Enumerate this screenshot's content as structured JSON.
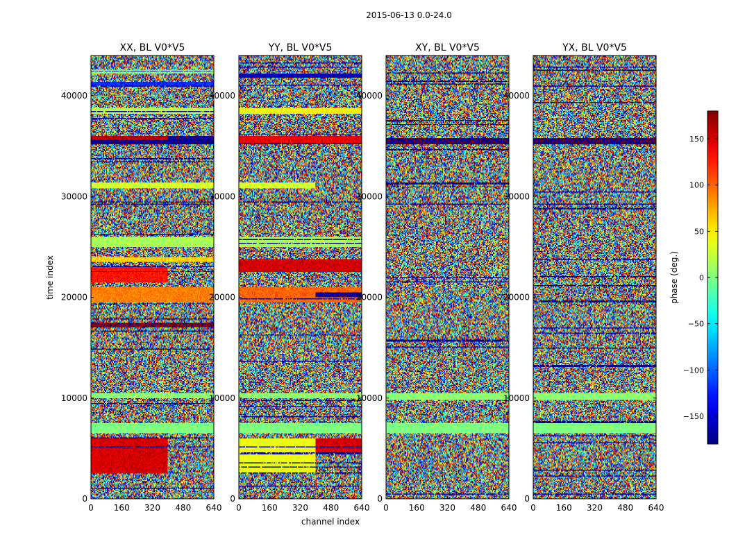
{
  "chart_data": {
    "type": "heatmap",
    "suptitle": "2015-06-13 0.0-24.0",
    "xlabel": "channel index",
    "ylabel": "time index",
    "xlim": [
      0,
      640
    ],
    "ylim": [
      0,
      44000
    ],
    "xticks": [
      0,
      160,
      320,
      480,
      640
    ],
    "yticks": [
      0,
      10000,
      20000,
      30000,
      40000
    ],
    "colormap": "jet",
    "colorbar": {
      "label": "phase (deg.)",
      "range": [
        -180,
        180
      ],
      "ticks": [
        -150,
        -100,
        -50,
        0,
        50,
        100,
        150
      ],
      "tick_labels": [
        "−150",
        "−100",
        "−50",
        "0",
        "50",
        "100",
        "150"
      ]
    },
    "panels": [
      {
        "title": "XX, BL V0*V5",
        "seed": 11,
        "bands": [
          {
            "t0": 2500,
            "t1": 6000,
            "phase": 150,
            "ch0": 0,
            "ch1": 400
          },
          {
            "t0": 6500,
            "t1": 7500,
            "phase": 0,
            "ch0": 0,
            "ch1": 640
          },
          {
            "t0": 10000,
            "t1": 10500,
            "phase": 5,
            "ch0": 0,
            "ch1": 640
          },
          {
            "t0": 17000,
            "t1": 17500,
            "phase": 175,
            "ch0": 0,
            "ch1": 640
          },
          {
            "t0": 19500,
            "t1": 21000,
            "phase": 90,
            "ch0": 0,
            "ch1": 640
          },
          {
            "t0": 21500,
            "t1": 23000,
            "phase": 130,
            "ch0": 0,
            "ch1": 400
          },
          {
            "t0": 23500,
            "t1": 24000,
            "phase": 60,
            "ch0": 0,
            "ch1": 640
          },
          {
            "t0": 25000,
            "t1": 26000,
            "phase": 15,
            "ch0": 0,
            "ch1": 640
          },
          {
            "t0": 30800,
            "t1": 31400,
            "phase": 30,
            "ch0": 0,
            "ch1": 640
          },
          {
            "t0": 35200,
            "t1": 36000,
            "phase": -170,
            "ch0": 0,
            "ch1": 640
          },
          {
            "t0": 35600,
            "t1": 36000,
            "phase": 160,
            "ch0": 0,
            "ch1": 400
          },
          {
            "t0": 38200,
            "t1": 38800,
            "phase": 20,
            "ch0": 0,
            "ch1": 640
          },
          {
            "t0": 41000,
            "t1": 41400,
            "phase": -120,
            "ch0": 0,
            "ch1": 640
          },
          {
            "t0": 42200,
            "t1": 42600,
            "phase": 0,
            "ch0": 0,
            "ch1": 640
          }
        ]
      },
      {
        "title": "YY, BL V0*V5",
        "seed": 23,
        "bands": [
          {
            "t0": 2500,
            "t1": 6000,
            "phase": 40,
            "ch0": 0,
            "ch1": 400
          },
          {
            "t0": 4500,
            "t1": 6000,
            "phase": 150,
            "ch0": 400,
            "ch1": 640
          },
          {
            "t0": 6500,
            "t1": 7500,
            "phase": 0,
            "ch0": 0,
            "ch1": 640
          },
          {
            "t0": 10000,
            "t1": 10500,
            "phase": 5,
            "ch0": 0,
            "ch1": 640
          },
          {
            "t0": 19500,
            "t1": 21000,
            "phase": 100,
            "ch0": 0,
            "ch1": 640
          },
          {
            "t0": 20000,
            "t1": 20500,
            "phase": -170,
            "ch0": 400,
            "ch1": 640
          },
          {
            "t0": 22500,
            "t1": 23800,
            "phase": 150,
            "ch0": 0,
            "ch1": 640
          },
          {
            "t0": 25000,
            "t1": 26000,
            "phase": 15,
            "ch0": 0,
            "ch1": 640
          },
          {
            "t0": 30800,
            "t1": 31400,
            "phase": 30,
            "ch0": 0,
            "ch1": 400
          },
          {
            "t0": 35200,
            "t1": 36000,
            "phase": 140,
            "ch0": 0,
            "ch1": 640
          },
          {
            "t0": 38200,
            "t1": 38800,
            "phase": 45,
            "ch0": 0,
            "ch1": 640
          },
          {
            "t0": 41800,
            "t1": 42200,
            "phase": -160,
            "ch0": 0,
            "ch1": 640
          }
        ]
      },
      {
        "title": "XY, BL V0*V5",
        "seed": 37,
        "bands": [
          {
            "t0": 6500,
            "t1": 7500,
            "phase": 0,
            "ch0": 0,
            "ch1": 640
          },
          {
            "t0": 9800,
            "t1": 10500,
            "phase": 5,
            "ch0": 0,
            "ch1": 640
          },
          {
            "t0": 35200,
            "t1": 35800,
            "phase": -175,
            "ch0": 0,
            "ch1": 640
          }
        ]
      },
      {
        "title": "YX, BL V0*V5",
        "seed": 53,
        "bands": [
          {
            "t0": 6500,
            "t1": 7500,
            "phase": 0,
            "ch0": 0,
            "ch1": 640
          },
          {
            "t0": 9800,
            "t1": 10500,
            "phase": 5,
            "ch0": 0,
            "ch1": 640
          },
          {
            "t0": 35200,
            "t1": 35800,
            "phase": -175,
            "ch0": 0,
            "ch1": 640
          }
        ]
      }
    ]
  }
}
